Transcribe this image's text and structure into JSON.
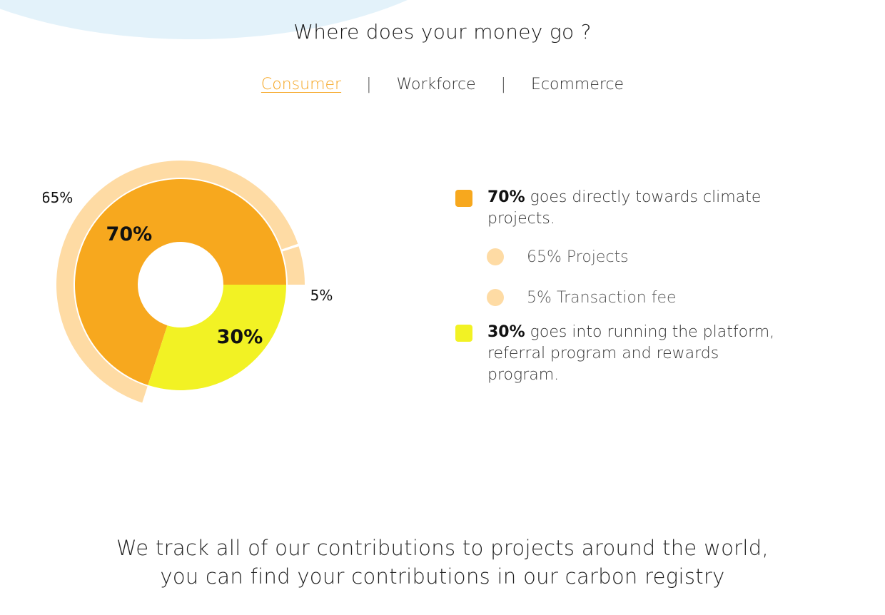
{
  "heading": "Where does your money go ?",
  "tabs": [
    {
      "label": "Consumer",
      "active": true
    },
    {
      "label": "Workforce",
      "active": false
    },
    {
      "label": "Ecommerce",
      "active": false
    }
  ],
  "tab_separator": "|",
  "colors": {
    "accent": "#f5a623",
    "climate": "#f7a81e",
    "platform": "#f2f224",
    "outer": "#fedba4",
    "background_blob": "#e3f2fa"
  },
  "chart_data": {
    "type": "pie",
    "inner_ring": [
      {
        "label": "70%",
        "value": 70,
        "color": "#f7a81e"
      },
      {
        "label": "30%",
        "value": 30,
        "color": "#f2f224"
      }
    ],
    "outer_ring": [
      {
        "label": "65%",
        "value": 65,
        "color": "#fedba4"
      },
      {
        "label": "5%",
        "value": 5,
        "color": "#fedba4"
      }
    ]
  },
  "legend": {
    "climate": {
      "bold": "70%",
      "text": " goes directly towards climate projects."
    },
    "sub_items": [
      {
        "text": "65% Projects"
      },
      {
        "text": "5% Transaction fee"
      }
    ],
    "platform": {
      "bold": "30%",
      "text": " goes into running the platform, referral program and rewards program."
    }
  },
  "footer": {
    "line1": "We track all of our contributions to projects around the world,",
    "line2": "you can find your contributions in our carbon registry"
  }
}
